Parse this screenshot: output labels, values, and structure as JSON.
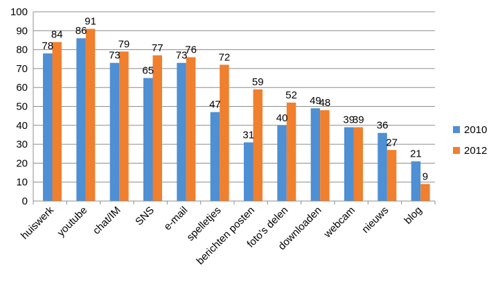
{
  "chart_data": {
    "type": "bar",
    "categories": [
      "huiswerk",
      "youtube",
      "chat/IM",
      "SNS",
      "e-mail",
      "spelletjes",
      "berichten posten",
      "foto's delen",
      "downloaden",
      "webcam",
      "nieuws",
      "blog"
    ],
    "series": [
      {
        "name": "2010",
        "values": [
          78,
          86,
          73,
          65,
          73,
          47,
          31,
          40,
          49,
          39,
          36,
          21
        ],
        "color": "#4F8FD4"
      },
      {
        "name": "2012",
        "values": [
          84,
          91,
          79,
          77,
          76,
          72,
          59,
          52,
          48,
          39,
          27,
          9
        ],
        "color": "#F07F2E"
      }
    ],
    "ylim": [
      0,
      100
    ],
    "yticks": [
      0,
      10,
      20,
      30,
      40,
      50,
      60,
      70,
      80,
      90,
      100
    ],
    "title": "",
    "xlabel": "",
    "ylabel": "",
    "grid": true,
    "legend_position": "right",
    "colors": {
      "grid": "#8C8C8C",
      "axis": "#8C8C8C"
    }
  }
}
